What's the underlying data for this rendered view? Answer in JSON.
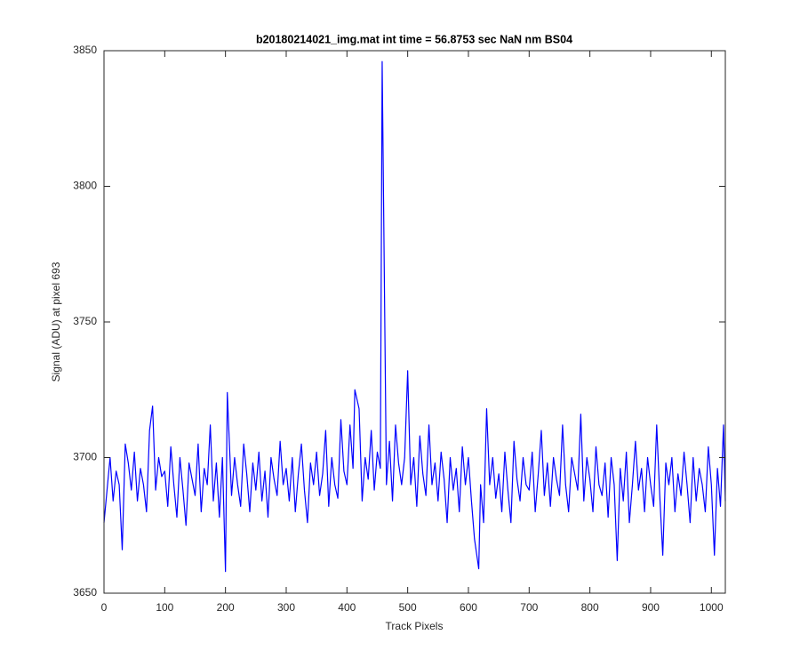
{
  "chart_data": {
    "type": "line",
    "title": "b20180214021_img.mat int time = 56.8753 sec  NaN nm BS04",
    "xlabel": "Track Pixels",
    "ylabel": "Signal (ADU) at pixel 693",
    "color": "#0000ff",
    "xlim": [
      0,
      1023
    ],
    "ylim": [
      3650,
      3850
    ],
    "xticks": [
      0,
      100,
      200,
      300,
      400,
      500,
      600,
      700,
      800,
      900,
      1000
    ],
    "yticks": [
      3650,
      3700,
      3750,
      3800,
      3850
    ],
    "x": [
      0,
      5,
      10,
      15,
      20,
      25,
      30,
      35,
      40,
      45,
      50,
      55,
      60,
      65,
      70,
      75,
      80,
      85,
      90,
      95,
      100,
      105,
      110,
      115,
      120,
      125,
      130,
      135,
      140,
      145,
      150,
      155,
      160,
      165,
      170,
      175,
      180,
      185,
      190,
      195,
      200,
      203,
      210,
      215,
      220,
      225,
      230,
      235,
      240,
      245,
      250,
      255,
      260,
      265,
      270,
      275,
      280,
      285,
      290,
      295,
      300,
      305,
      310,
      315,
      320,
      325,
      330,
      335,
      340,
      345,
      350,
      355,
      360,
      365,
      370,
      375,
      380,
      385,
      390,
      395,
      400,
      405,
      410,
      413,
      420,
      425,
      430,
      435,
      440,
      445,
      450,
      455,
      458,
      465,
      470,
      475,
      480,
      485,
      490,
      495,
      500,
      505,
      510,
      515,
      520,
      525,
      530,
      535,
      540,
      545,
      550,
      555,
      560,
      565,
      570,
      575,
      580,
      585,
      590,
      595,
      600,
      605,
      610,
      617,
      620,
      625,
      630,
      635,
      640,
      645,
      650,
      655,
      660,
      665,
      670,
      675,
      680,
      685,
      690,
      695,
      700,
      705,
      710,
      715,
      720,
      725,
      730,
      735,
      740,
      745,
      750,
      755,
      760,
      765,
      770,
      775,
      780,
      785,
      790,
      795,
      800,
      805,
      810,
      815,
      820,
      825,
      830,
      835,
      840,
      845,
      850,
      855,
      860,
      865,
      870,
      875,
      880,
      885,
      890,
      895,
      900,
      905,
      910,
      915,
      920,
      925,
      930,
      935,
      940,
      945,
      950,
      955,
      960,
      965,
      970,
      975,
      980,
      985,
      990,
      995,
      1000,
      1005,
      1010,
      1015,
      1020,
      1023
    ],
    "values": [
      3676,
      3688,
      3700,
      3684,
      3695,
      3690,
      3666,
      3705,
      3698,
      3688,
      3702,
      3684,
      3696,
      3690,
      3680,
      3710,
      3719,
      3688,
      3700,
      3693,
      3695,
      3682,
      3704,
      3690,
      3678,
      3700,
      3688,
      3675,
      3698,
      3692,
      3686,
      3705,
      3680,
      3696,
      3690,
      3712,
      3684,
      3698,
      3678,
      3700,
      3658,
      3724,
      3686,
      3700,
      3690,
      3682,
      3705,
      3694,
      3680,
      3698,
      3688,
      3702,
      3684,
      3695,
      3678,
      3700,
      3692,
      3686,
      3706,
      3690,
      3696,
      3684,
      3700,
      3680,
      3694,
      3705,
      3688,
      3676,
      3698,
      3690,
      3702,
      3686,
      3694,
      3710,
      3682,
      3700,
      3690,
      3685,
      3714,
      3695,
      3690,
      3712,
      3696,
      3725,
      3718,
      3684,
      3700,
      3692,
      3710,
      3688,
      3702,
      3696,
      3846,
      3690,
      3706,
      3684,
      3712,
      3698,
      3690,
      3700,
      3732,
      3690,
      3700,
      3682,
      3708,
      3694,
      3686,
      3712,
      3690,
      3698,
      3684,
      3702,
      3692,
      3676,
      3700,
      3688,
      3696,
      3680,
      3704,
      3690,
      3700,
      3684,
      3670,
      3659,
      3690,
      3676,
      3718,
      3690,
      3700,
      3685,
      3694,
      3680,
      3702,
      3688,
      3676,
      3706,
      3692,
      3684,
      3700,
      3690,
      3688,
      3702,
      3680,
      3694,
      3710,
      3686,
      3698,
      3682,
      3700,
      3692,
      3686,
      3712,
      3690,
      3680,
      3700,
      3694,
      3688,
      3716,
      3684,
      3700,
      3692,
      3680,
      3704,
      3690,
      3686,
      3698,
      3678,
      3700,
      3690,
      3662,
      3696,
      3684,
      3702,
      3676,
      3690,
      3706,
      3688,
      3696,
      3680,
      3700,
      3690,
      3682,
      3712,
      3686,
      3664,
      3698,
      3690,
      3700,
      3680,
      3694,
      3686,
      3702,
      3690,
      3676,
      3700,
      3684,
      3696,
      3690,
      3680,
      3704,
      3690,
      3664,
      3696,
      3682,
      3712,
      3684
    ]
  }
}
